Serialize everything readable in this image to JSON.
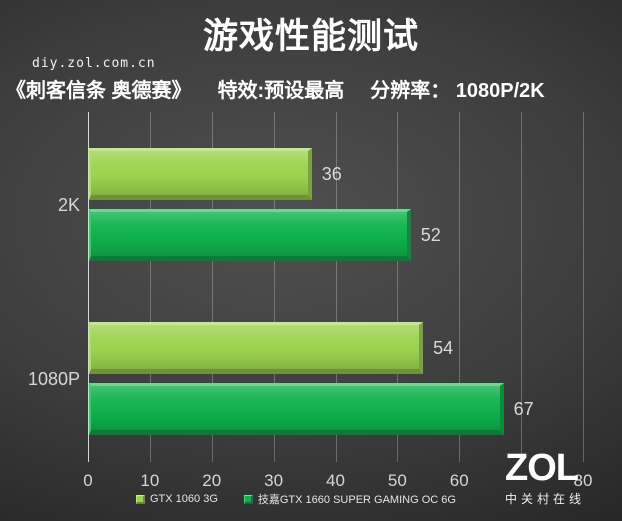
{
  "header": {
    "title": "游戏性能测试",
    "watermark": "diy.zol.com.cn",
    "subtitle": {
      "game": "《刺客信条 奥德赛》",
      "settings": "特效:预设最高",
      "resolution": "分辨率： 1080P/2K"
    }
  },
  "chart_data": {
    "type": "bar",
    "orientation": "horizontal",
    "title": "游戏性能测试",
    "categories": [
      "2K",
      "1080P"
    ],
    "series": [
      {
        "name": "GTX 1060 3G",
        "color": "#9cd34f",
        "values": [
          36,
          54
        ]
      },
      {
        "name": "技嘉GTX 1660 SUPER GAMING OC 6G",
        "color": "#0fb24c",
        "values": [
          52,
          67
        ]
      }
    ],
    "xlabel": "",
    "ylabel": "",
    "xlim": [
      0,
      80
    ],
    "xticks": [
      0,
      10,
      20,
      30,
      40,
      50,
      60,
      80
    ],
    "grid": true,
    "legend_position": "bottom",
    "value_labels": true
  },
  "footer": {
    "logo_text": "ZOL",
    "logo_subtext": "中关村在线"
  }
}
